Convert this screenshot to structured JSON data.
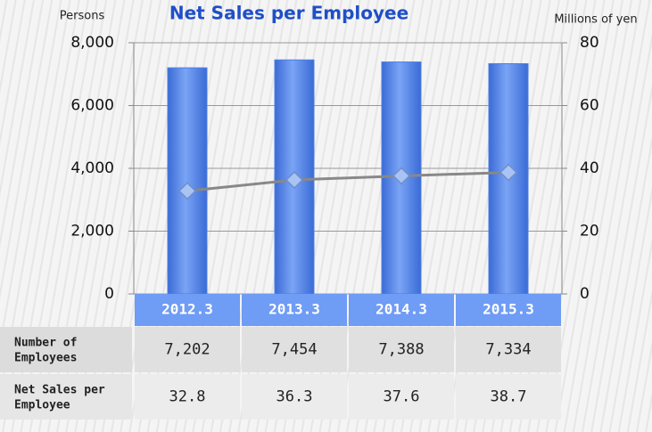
{
  "chart_data": {
    "type": "bar_line",
    "title": "Net Sales per Employee",
    "ylabel": "Persons",
    "y2label": "Millions of yen",
    "categories": [
      "2012.3",
      "2013.3",
      "2014.3",
      "2015.3"
    ],
    "series": [
      {
        "name": "Number of Employees",
        "type": "bar",
        "color": "#4d7fe6",
        "values": [
          7202,
          7454,
          7388,
          7334
        ],
        "value_labels": [
          "7,202",
          "7,454",
          "7,388",
          "7,334"
        ]
      },
      {
        "name": "Net Sales per Employee",
        "type": "line",
        "axis": "y2",
        "color": "#888888",
        "values": [
          32.8,
          36.3,
          37.6,
          38.7
        ]
      }
    ],
    "ylim": [
      0,
      8000
    ],
    "yticks": [
      0,
      {
        "value": 2000,
        "label": "2,000"
      },
      {
        "value": 4000,
        "label": "4,000"
      },
      {
        "value": 6000,
        "label": "6,000"
      },
      {
        "value": 8000,
        "label": "8,000"
      }
    ],
    "y2lim": [
      0,
      80
    ],
    "y2ticks": [
      0,
      20,
      40,
      60,
      80
    ],
    "grid": true
  }
}
